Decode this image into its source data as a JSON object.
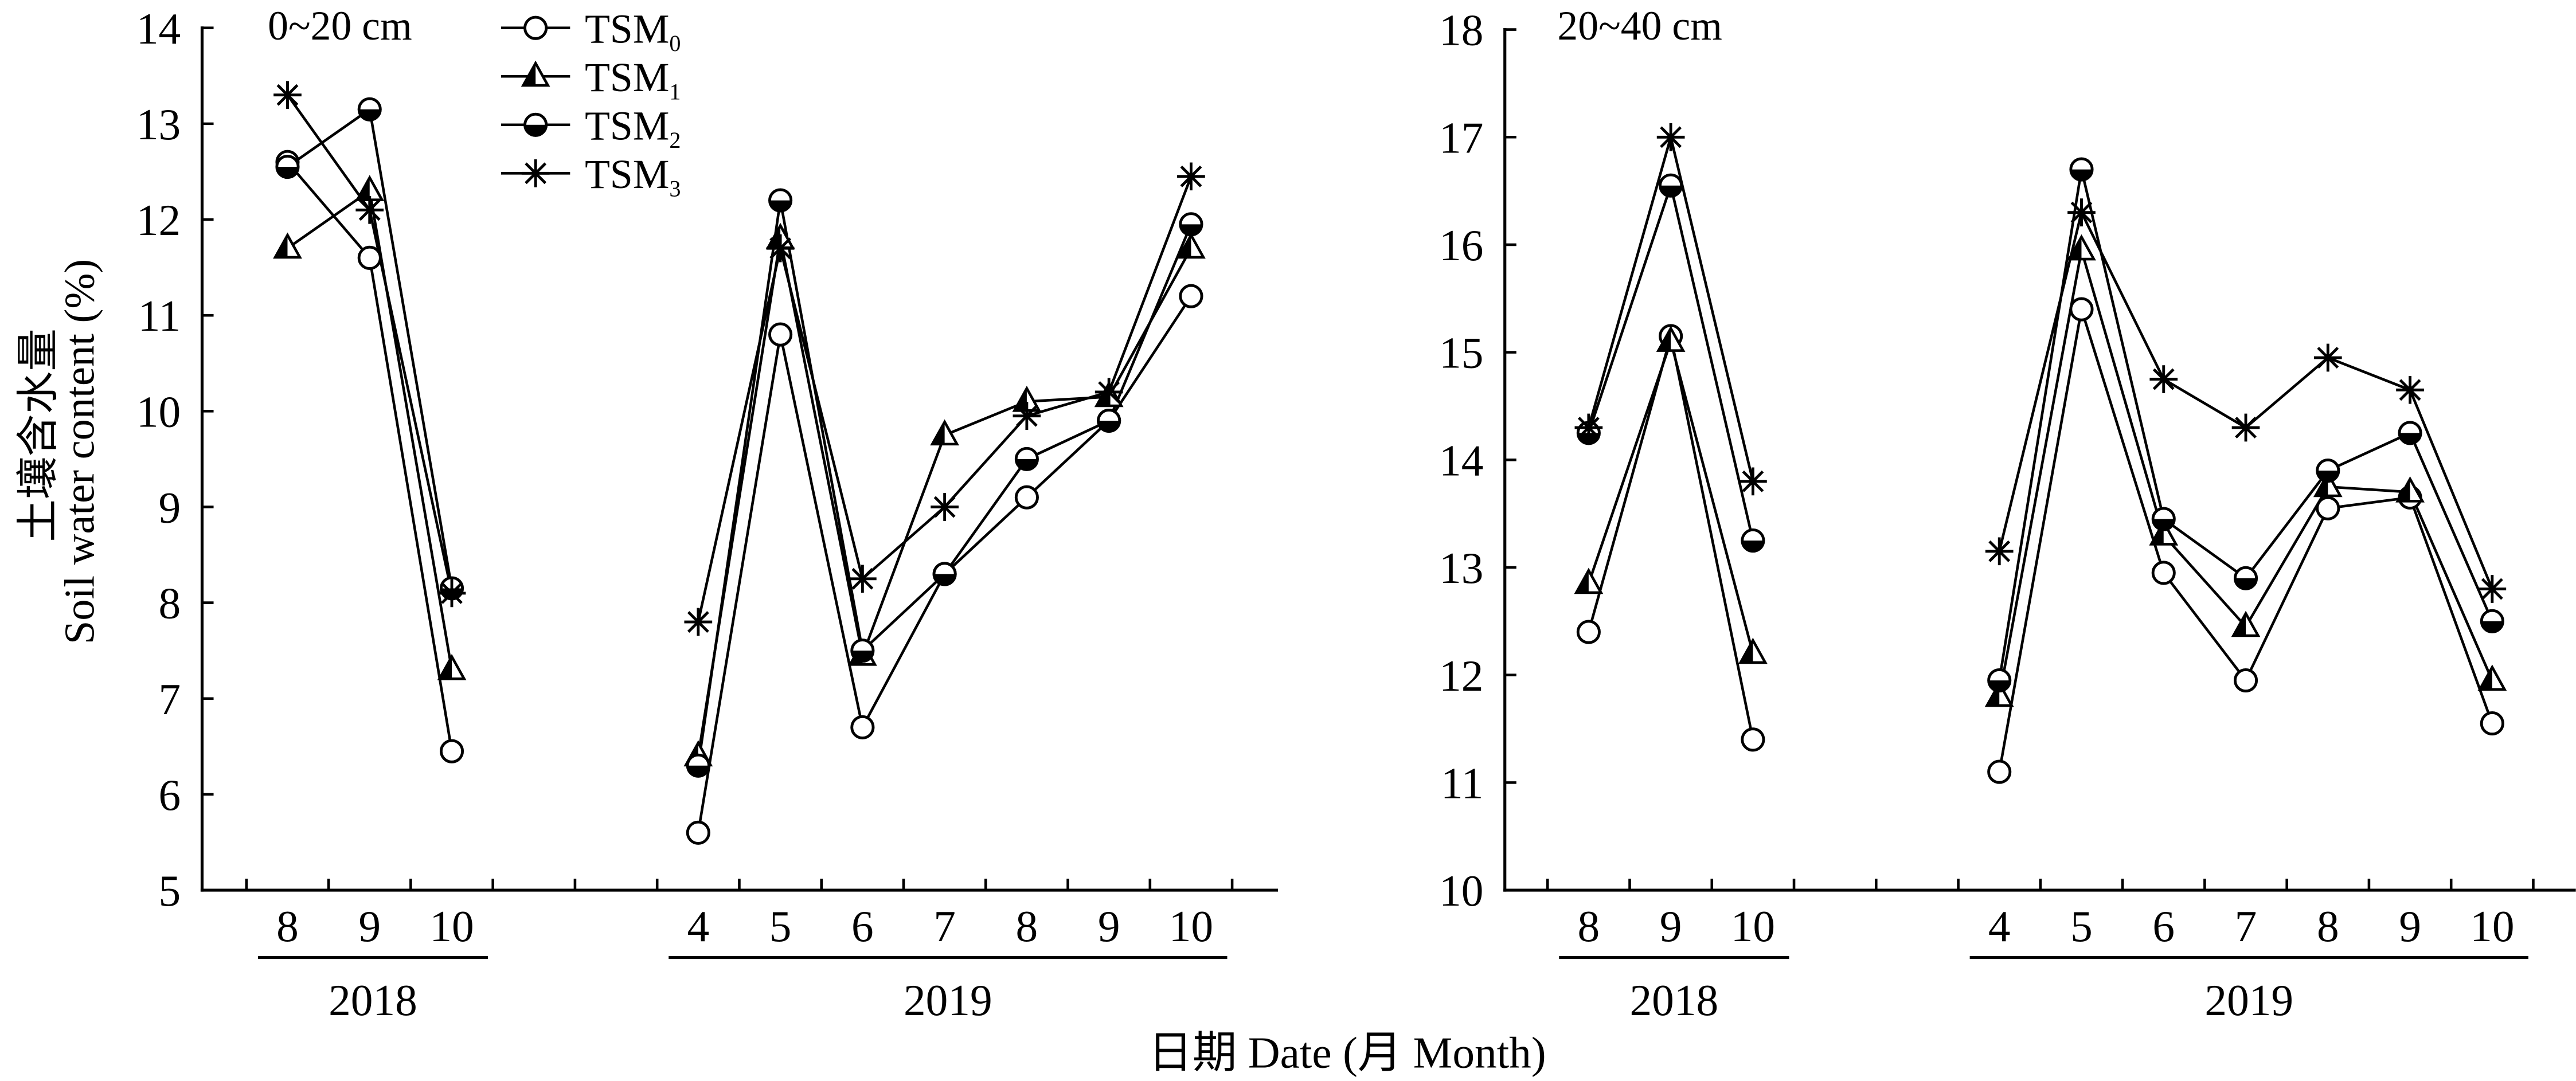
{
  "figure": {
    "xlabel": "日期 Date (月 Month)"
  },
  "colors": {
    "ink": "#000000",
    "paper": "#ffffff"
  },
  "chart_data": [
    {
      "type": "line",
      "title": "0~20 cm",
      "ylabel_cn": "土壤含水量",
      "ylabel": "Soil water content (%)",
      "ylim": [
        5,
        14
      ],
      "yticks": [
        5,
        6,
        7,
        8,
        9,
        10,
        11,
        12,
        13,
        14
      ],
      "groups": [
        {
          "year": "2018",
          "months": [
            "8",
            "9",
            "10"
          ]
        },
        {
          "year": "2019",
          "months": [
            "4",
            "5",
            "6",
            "7",
            "8",
            "9",
            "10"
          ]
        }
      ],
      "legend": [
        {
          "name": "TSM",
          "sub": "0",
          "marker": "open-circle"
        },
        {
          "name": "TSM",
          "sub": "1",
          "marker": "half-triangle"
        },
        {
          "name": "TSM",
          "sub": "2",
          "marker": "half-circle"
        },
        {
          "name": "TSM",
          "sub": "3",
          "marker": "asterisk"
        }
      ],
      "series": [
        {
          "marker": "open-circle",
          "values": [
            [
              12.6,
              11.6,
              6.45
            ],
            [
              5.6,
              10.8,
              6.7,
              8.3,
              9.1,
              9.9,
              11.2
            ]
          ]
        },
        {
          "marker": "half-triangle",
          "values": [
            [
              11.7,
              12.3,
              7.3
            ],
            [
              6.4,
              11.8,
              7.45,
              9.75,
              10.1,
              10.15,
              11.7
            ]
          ]
        },
        {
          "marker": "half-circle",
          "values": [
            [
              12.55,
              13.15,
              8.15
            ],
            [
              6.3,
              12.2,
              7.5,
              8.3,
              9.5,
              9.9,
              11.95
            ]
          ]
        },
        {
          "marker": "asterisk",
          "values": [
            [
              13.3,
              12.1,
              8.1
            ],
            [
              7.8,
              11.7,
              8.25,
              9.0,
              9.95,
              10.2,
              12.45
            ]
          ]
        }
      ]
    },
    {
      "type": "line",
      "title": "20~40 cm",
      "ylim": [
        10,
        18
      ],
      "yticks": [
        10,
        11,
        12,
        13,
        14,
        15,
        16,
        17,
        18
      ],
      "groups": [
        {
          "year": "2018",
          "months": [
            "8",
            "9",
            "10"
          ]
        },
        {
          "year": "2019",
          "months": [
            "4",
            "5",
            "6",
            "7",
            "8",
            "9",
            "10"
          ]
        }
      ],
      "series": [
        {
          "marker": "open-circle",
          "values": [
            [
              12.4,
              15.15,
              11.4
            ],
            [
              11.1,
              15.4,
              12.95,
              11.95,
              13.55,
              13.65,
              11.55
            ]
          ]
        },
        {
          "marker": "half-triangle",
          "values": [
            [
              12.85,
              15.1,
              12.2
            ],
            [
              11.8,
              15.95,
              13.3,
              12.45,
              13.75,
              13.7,
              11.95
            ]
          ]
        },
        {
          "marker": "half-circle",
          "values": [
            [
              14.25,
              16.55,
              13.25
            ],
            [
              11.95,
              16.7,
              13.45,
              12.9,
              13.9,
              14.25,
              12.5
            ]
          ]
        },
        {
          "marker": "asterisk",
          "values": [
            [
              14.3,
              17.0,
              13.8
            ],
            [
              13.15,
              16.3,
              14.75,
              14.3,
              14.95,
              14.65,
              12.8
            ]
          ]
        }
      ]
    }
  ]
}
